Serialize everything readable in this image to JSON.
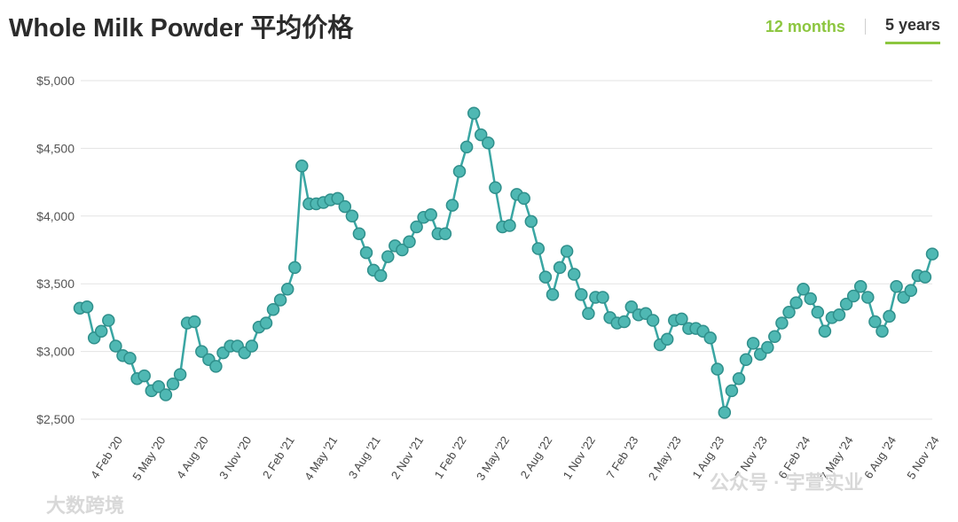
{
  "header": {
    "title": "Whole Milk Powder 平均价格"
  },
  "tabs": [
    {
      "label": "12 months",
      "active": false
    },
    {
      "label": "5 years",
      "active": true
    }
  ],
  "watermarks": {
    "left": "大数跨境",
    "right": "公众号 · 宇萱实业"
  },
  "colors": {
    "line": "#3aa6a3",
    "marker_fill": "#4fb8b3",
    "marker_stroke": "#2f8f8b",
    "grid": "#e3e3e3",
    "accent": "#8cc63f"
  },
  "chart_data": {
    "type": "line",
    "title": "Whole Milk Powder 平均价格",
    "xlabel": "",
    "ylabel": "",
    "ylim": [
      2500,
      5000
    ],
    "yticks": [
      "$2,500",
      "$3,000",
      "$3,500",
      "$4,000",
      "$4,500",
      "$5,000"
    ],
    "ytick_values": [
      2500,
      3000,
      3500,
      4000,
      4500,
      5000
    ],
    "grid": true,
    "legend": "none",
    "xtick_labels": [
      "4 Feb '20",
      "5 May '20",
      "4 Aug '20",
      "3 Nov '20",
      "2 Feb '21",
      "4 May '21",
      "3 Aug '21",
      "2 Nov '21",
      "1 Feb '22",
      "3 May '22",
      "2 Aug '22",
      "1 Nov '22",
      "7 Feb '23",
      "2 May '23",
      "1 Aug '23",
      "7 Nov '23",
      "6 Feb '24",
      "7 May '24",
      "6 Aug '24",
      "5 Nov '24"
    ],
    "xtick_positions": [
      6,
      12,
      18,
      24,
      30,
      36,
      42,
      48,
      54,
      60,
      66,
      72,
      78,
      84,
      90,
      96,
      102,
      108,
      114,
      120
    ],
    "series": [
      {
        "values": [
          3320,
          3330,
          3100,
          3150,
          3230,
          3040,
          2970,
          2950,
          2800,
          2820,
          2710,
          2740,
          2680,
          2760,
          2830,
          3210,
          3220,
          3000,
          2940,
          2890,
          2990,
          3040,
          3040,
          2990,
          3040,
          3180,
          3210,
          3310,
          3380,
          3460,
          3620,
          4370,
          4090,
          4090,
          4100,
          4120,
          4130,
          4070,
          4000,
          3870,
          3730,
          3600,
          3560,
          3700,
          3780,
          3750,
          3810,
          3920,
          3990,
          4010,
          3870,
          3870,
          4080,
          4330,
          4510,
          4760,
          4600,
          4540,
          4210,
          3920,
          3930,
          4160,
          4130,
          3960,
          3760,
          3550,
          3420,
          3620,
          3740,
          3570,
          3420,
          3280,
          3400,
          3400,
          3250,
          3210,
          3220,
          3330,
          3270,
          3280,
          3230,
          3050,
          3090,
          3230,
          3240,
          3170,
          3170,
          3150,
          3100,
          2870,
          2550,
          2710,
          2800,
          2940,
          3060,
          2980,
          3030,
          3110,
          3210,
          3290,
          3360,
          3460,
          3390,
          3290,
          3150,
          3250,
          3270,
          3350,
          3410,
          3480,
          3400,
          3220,
          3150,
          3260,
          3480,
          3400,
          3450,
          3560,
          3550,
          3720
        ]
      }
    ]
  }
}
